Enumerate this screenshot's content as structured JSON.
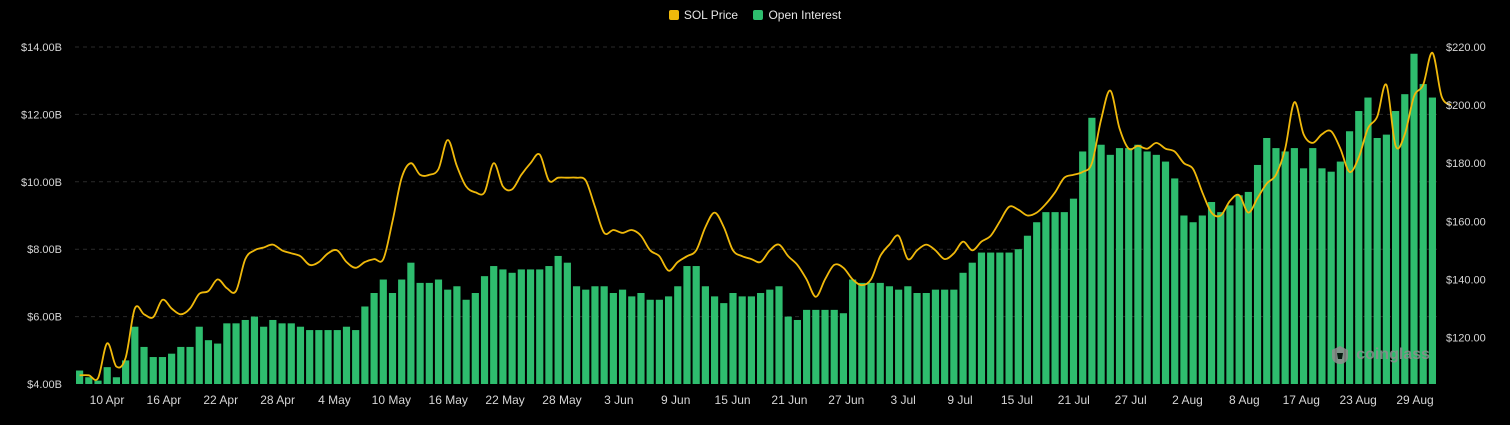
{
  "legend": {
    "price_label": "SOL Price",
    "oi_label": "Open Interest"
  },
  "watermark": "coinglass",
  "colors": {
    "price": "#f0b90b",
    "oi": "#2ebd6e",
    "background": "#000000",
    "grid": "#2a2a2a",
    "text": "#d6d6d6"
  },
  "chart_data": {
    "type": "bar",
    "title": "",
    "left_axis": {
      "ticks": [
        "$4.00B",
        "$6.00B",
        "$8.00B",
        "$10.00B",
        "$12.00B",
        "$14.00B"
      ],
      "range": [
        4,
        14
      ],
      "unit": "B"
    },
    "right_axis": {
      "ticks": [
        "$120.00",
        "$140.00",
        "$160.00",
        "$180.00",
        "$200.00",
        "$220.00"
      ],
      "range": [
        104,
        220
      ]
    },
    "x_ticks": [
      "10 Apr",
      "16 Apr",
      "22 Apr",
      "28 Apr",
      "4 May",
      "10 May",
      "16 May",
      "22 May",
      "28 May",
      "3 Jun",
      "9 Jun",
      "15 Jun",
      "21 Jun",
      "27 Jun",
      "3 Jul",
      "9 Jul",
      "15 Jul",
      "21 Jul",
      "27 Jul",
      "2 Aug",
      "8 Aug",
      "17 Aug",
      "23 Aug",
      "29 Aug"
    ],
    "grid": true,
    "legend_position": "top-center",
    "series": [
      {
        "name": "Open Interest",
        "axis": "left",
        "kind": "bar",
        "values": [
          4.4,
          4.2,
          4.1,
          4.5,
          4.2,
          4.7,
          5.7,
          5.1,
          4.8,
          4.8,
          4.9,
          5.1,
          5.1,
          5.7,
          5.3,
          5.2,
          5.8,
          5.8,
          5.9,
          6.0,
          5.7,
          5.9,
          5.8,
          5.8,
          5.7,
          5.6,
          5.6,
          5.6,
          5.6,
          5.7,
          5.6,
          6.3,
          6.7,
          7.1,
          6.7,
          7.1,
          7.6,
          7.0,
          7.0,
          7.1,
          6.8,
          6.9,
          6.5,
          6.7,
          7.2,
          7.5,
          7.4,
          7.3,
          7.4,
          7.4,
          7.4,
          7.5,
          7.8,
          7.6,
          6.9,
          6.8,
          6.9,
          6.9,
          6.7,
          6.8,
          6.6,
          6.7,
          6.5,
          6.5,
          6.6,
          6.9,
          7.5,
          7.5,
          6.9,
          6.6,
          6.4,
          6.7,
          6.6,
          6.6,
          6.7,
          6.8,
          6.9,
          6.0,
          5.9,
          6.2,
          6.2,
          6.2,
          6.2,
          6.1,
          7.1,
          7.0,
          7.0,
          7.0,
          6.9,
          6.8,
          6.9,
          6.7,
          6.7,
          6.8,
          6.8,
          6.8,
          7.3,
          7.6,
          7.9,
          7.9,
          7.9,
          7.9,
          8.0,
          8.4,
          8.8,
          9.1,
          9.1,
          9.1,
          9.5,
          10.9,
          11.9,
          11.1,
          10.8,
          11.0,
          11.0,
          11.1,
          10.9,
          10.8,
          10.6,
          10.1,
          9.0,
          8.8,
          9.0,
          9.4,
          9.1,
          9.3,
          9.6,
          9.7,
          10.5,
          11.3,
          11.0,
          10.9,
          11.0,
          10.4,
          11.0,
          10.4,
          10.3,
          10.6,
          11.5,
          12.1,
          12.5,
          11.3,
          11.4,
          12.1,
          12.6,
          13.8,
          12.9,
          12.5
        ]
      },
      {
        "name": "SOL Price",
        "axis": "right",
        "kind": "line",
        "values": [
          107,
          107,
          106,
          118,
          110,
          113,
          130,
          128,
          127,
          133,
          130,
          128,
          130,
          135,
          136,
          140,
          137,
          136,
          147,
          150,
          151,
          152,
          150,
          149,
          148,
          145,
          146,
          149,
          150,
          146,
          144,
          146,
          147,
          147,
          160,
          175,
          180,
          176,
          176,
          178,
          188,
          179,
          172,
          170,
          170,
          180,
          172,
          171,
          176,
          180,
          183,
          174,
          175,
          175,
          175,
          174,
          165,
          156,
          157,
          156,
          157,
          155,
          150,
          148,
          143,
          146,
          148,
          150,
          158,
          163,
          158,
          150,
          148,
          147,
          146,
          150,
          152,
          148,
          145,
          140,
          134,
          140,
          145,
          144,
          140,
          138,
          140,
          148,
          152,
          155,
          147,
          150,
          152,
          150,
          147,
          149,
          153,
          150,
          153,
          155,
          160,
          165,
          164,
          162,
          163,
          166,
          170,
          175,
          176,
          177,
          180,
          195,
          205,
          192,
          185,
          186,
          185,
          187,
          185,
          184,
          180,
          178,
          170,
          163,
          162,
          167,
          169,
          163,
          168,
          173,
          176,
          185,
          201,
          190,
          187,
          190,
          191,
          185,
          177,
          182,
          192,
          196,
          207,
          186,
          190,
          203,
          207,
          218,
          203,
          200
        ]
      }
    ]
  }
}
